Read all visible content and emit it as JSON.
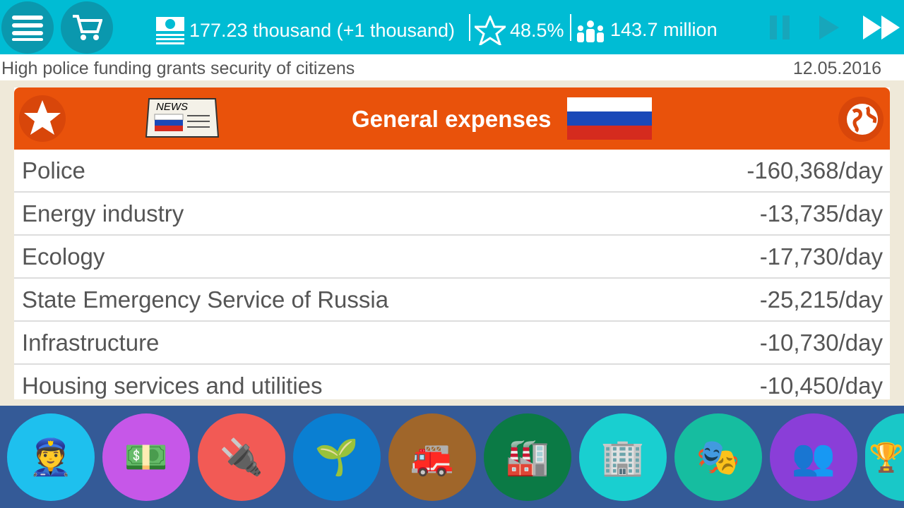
{
  "topbar": {
    "money": "177.23 thousand (+1 thousand)",
    "rating": "48.5%",
    "population": "143.7 million",
    "icons": [
      "menu-icon",
      "cart-icon",
      "money-icon",
      "star-icon",
      "people-icon",
      "pause-icon",
      "play-icon",
      "fast-forward-icon"
    ]
  },
  "news": {
    "text": "High police funding grants security of citizens",
    "date": "12.05.2016"
  },
  "panel": {
    "title": "General expenses",
    "news_badge": "NEWS",
    "rows": [
      {
        "label": "Police",
        "value": "-160,368/day"
      },
      {
        "label": "Energy industry",
        "value": "-13,735/day"
      },
      {
        "label": "Ecology",
        "value": "-17,730/day"
      },
      {
        "label": "State Emergency Service of Russia",
        "value": "-25,215/day"
      },
      {
        "label": "Infrastructure",
        "value": "-10,730/day"
      },
      {
        "label": "Housing services and utilities",
        "value": "-10,450/day"
      }
    ]
  },
  "categories": [
    {
      "name": "police",
      "color": "#1ec0ee",
      "glyph": "👮"
    },
    {
      "name": "finance",
      "color": "#c657e8",
      "glyph": "💵"
    },
    {
      "name": "energy",
      "color": "#f25a55",
      "glyph": "🔌"
    },
    {
      "name": "ecology",
      "color": "#0a7fd2",
      "glyph": "🌱"
    },
    {
      "name": "emergency",
      "color": "#a0662a",
      "glyph": "🚒"
    },
    {
      "name": "industry",
      "color": "#0b7a45",
      "glyph": "🏭"
    },
    {
      "name": "housing",
      "color": "#19cfd0",
      "glyph": "🏢"
    },
    {
      "name": "culture",
      "color": "#16bda0",
      "glyph": "🎭"
    },
    {
      "name": "society",
      "color": "#8a3ed8",
      "glyph": "👥"
    },
    {
      "name": "sports",
      "color": "#19c8c8",
      "glyph": "🏆"
    }
  ]
}
